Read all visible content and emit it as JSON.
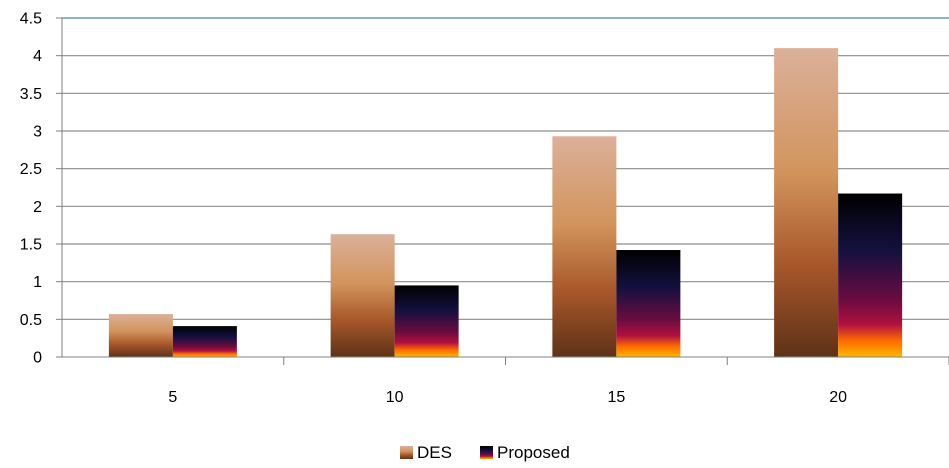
{
  "chart_data": {
    "type": "bar",
    "categories": [
      "5",
      "10",
      "15",
      "20"
    ],
    "series": [
      {
        "name": "DES",
        "values": [
          0.57,
          1.63,
          2.93,
          4.1
        ]
      },
      {
        "name": "Proposed",
        "values": [
          0.41,
          0.95,
          1.42,
          2.17
        ]
      }
    ],
    "ylim": [
      0,
      4.5
    ],
    "yticks": [
      "0",
      "0.5",
      "1",
      "1.5",
      "2",
      "2.5",
      "3",
      "3.5",
      "4",
      "4.5"
    ],
    "grid": true,
    "legend_position": "bottom"
  },
  "colors": {
    "gridline": "#8c8c8c",
    "top_border": "#4f81bd",
    "axis": "#808080"
  }
}
